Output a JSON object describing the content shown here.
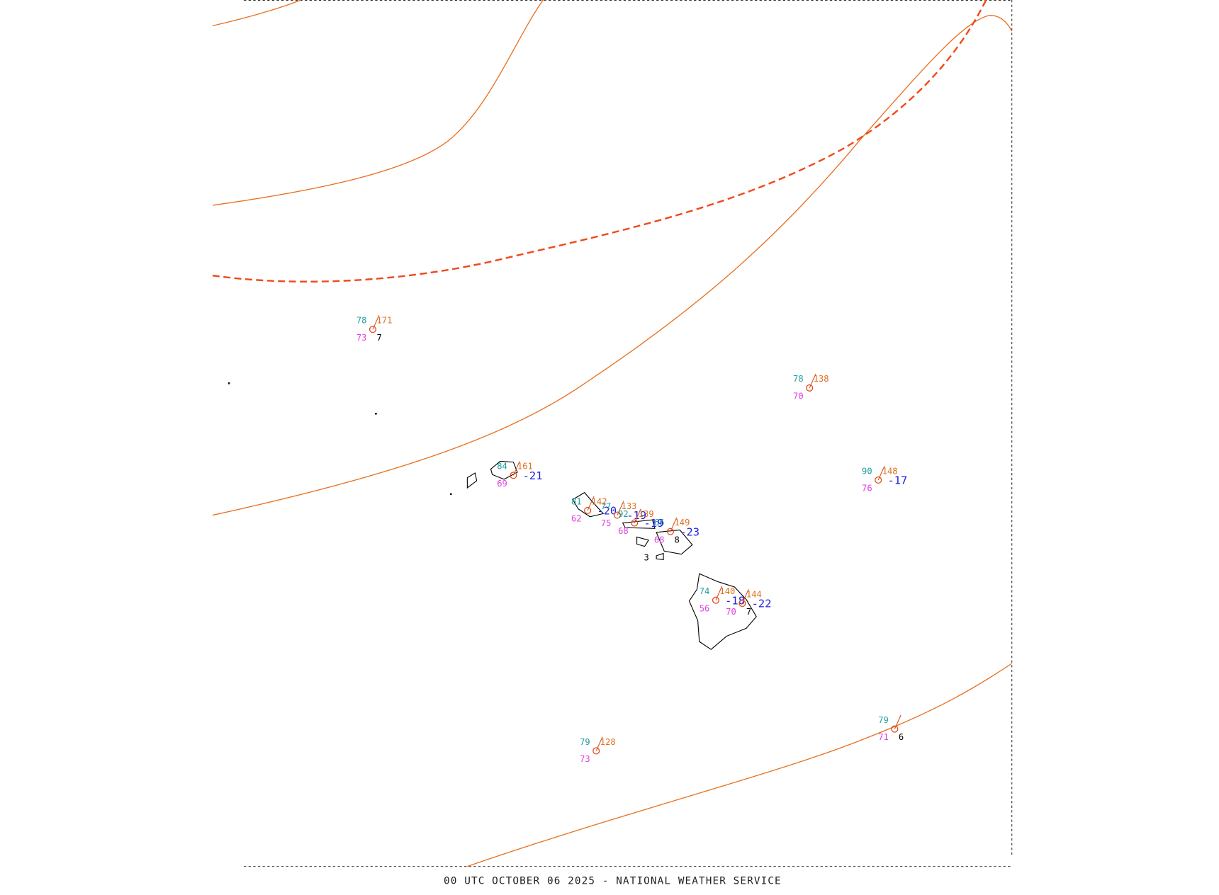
{
  "footer": "00 UTC OCTOBER 06 2025 - NATIONAL WEATHER SERVICE",
  "stations": [
    {
      "temp": "78",
      "pressure": "171",
      "dewpoint": "73",
      "extra": "7"
    },
    {
      "temp": "78",
      "pressure": "138",
      "dewpoint": "70"
    },
    {
      "temp": "90",
      "pressure": "148",
      "dewpoint": "76",
      "tendency": "-17"
    },
    {
      "temp": "84",
      "pressure": "161",
      "dewpoint": "69",
      "tendency": "-21"
    },
    {
      "temp": "79",
      "pressure": "128",
      "dewpoint": "73"
    },
    {
      "temp": "79",
      "dewpoint": "71",
      "extra": "6"
    },
    {
      "temp": "74",
      "pressure": "140",
      "dewpoint": "56",
      "tendency": "-18"
    },
    {
      "pressure": "144",
      "dewpoint": "70",
      "extra": "7",
      "tendency": "-22"
    },
    {
      "temp": "66",
      "pressure": "149",
      "dewpoint": "68",
      "extra": "8",
      "tendency": "-23"
    },
    {
      "temp": "81",
      "pressure": "142",
      "dewpoint": "62",
      "tendency": "-20"
    },
    {
      "temp": "77",
      "pressure": "133",
      "dewpoint": "75",
      "tendency": "-19"
    },
    {
      "temp": "92",
      "pressure": "139",
      "dewpoint": "68",
      "tendency": "-19"
    },
    {
      "extra": "3"
    }
  ]
}
